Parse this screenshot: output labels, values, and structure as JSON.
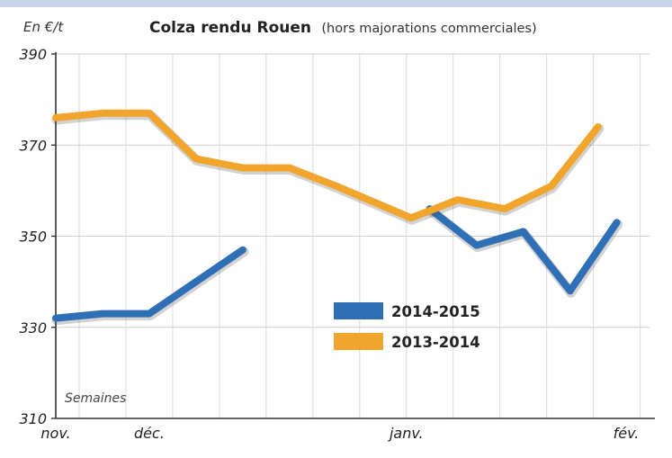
{
  "chart_data": {
    "type": "line",
    "title": "Colza rendu Rouen",
    "subtitle": "(hors majorations commerciales)",
    "ylabel": "En €/t",
    "xlabel": "Semaines",
    "ylim": [
      310,
      390
    ],
    "yticks": [
      390,
      370,
      350,
      330,
      310
    ],
    "x_range": [
      0,
      12.7
    ],
    "month_labels": [
      {
        "label": "nov.",
        "x": 0
      },
      {
        "label": "déc.",
        "x": 2
      },
      {
        "label": "janv.",
        "x": 7.5
      },
      {
        "label": "fév.",
        "x": 12.2
      }
    ],
    "grid": true,
    "legend_position": "center",
    "series": [
      {
        "name": "2014-2015",
        "color": "#2f6fb6",
        "points": [
          [
            0,
            332
          ],
          [
            1,
            333
          ],
          [
            2,
            333
          ],
          [
            3,
            340
          ],
          [
            4,
            347
          ]
        ]
      },
      {
        "name": "2014-2015",
        "color": "#2f6fb6",
        "show_in_legend": false,
        "points": [
          [
            8,
            356
          ],
          [
            9,
            348
          ],
          [
            10,
            351
          ],
          [
            11,
            338
          ],
          [
            12,
            353
          ]
        ]
      },
      {
        "name": "2013-2014",
        "color": "#f2a52c",
        "points": [
          [
            0,
            376
          ],
          [
            1,
            377
          ],
          [
            2,
            377
          ],
          [
            3,
            367
          ],
          [
            4,
            365
          ],
          [
            5,
            365
          ],
          [
            6,
            361
          ],
          [
            7.6,
            354
          ],
          [
            8.6,
            358
          ],
          [
            9.6,
            356
          ],
          [
            10.6,
            361
          ],
          [
            11.6,
            374
          ]
        ]
      }
    ]
  }
}
